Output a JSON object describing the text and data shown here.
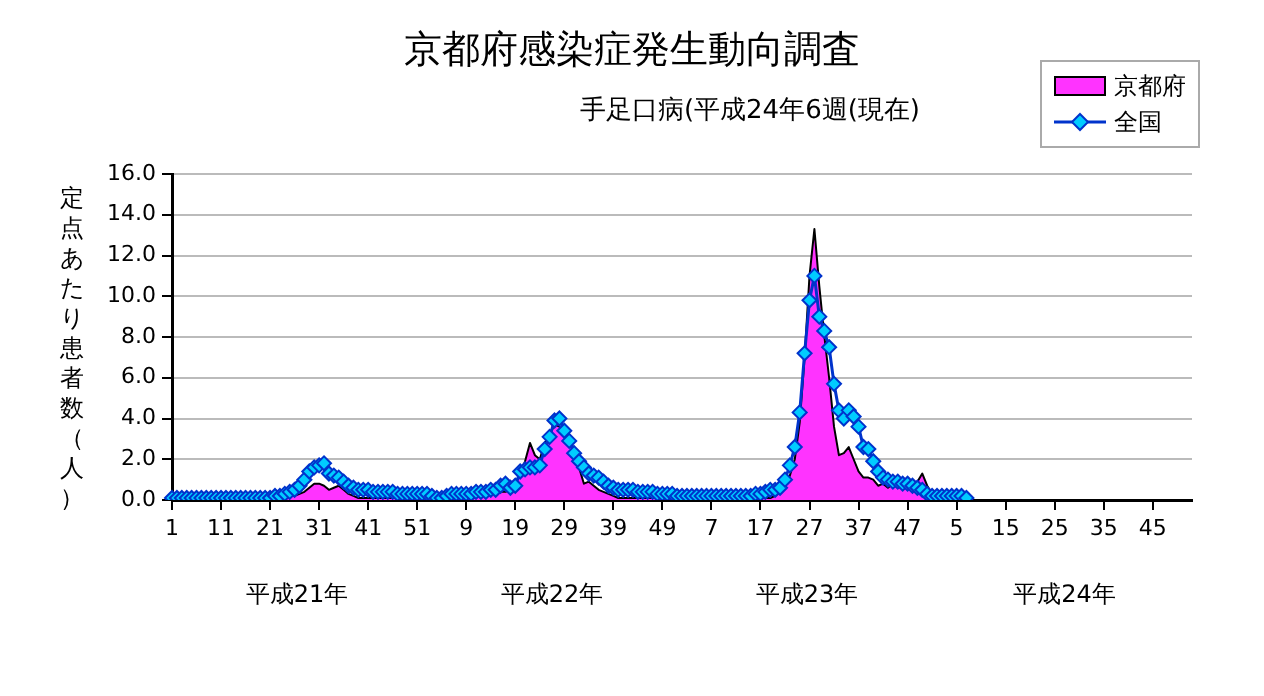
{
  "chart_data": {
    "type": "line",
    "title": "京都府感染症発生動向調査",
    "subtitle": "手足口病(平成24年6週(現在)",
    "ylabel": "定点あたり患者数（人）",
    "categories": [
      "1",
      null,
      null,
      null,
      null,
      null,
      null,
      null,
      null,
      null,
      "11",
      null,
      null,
      null,
      null,
      null,
      null,
      null,
      null,
      null,
      "21",
      null,
      null,
      null,
      null,
      null,
      null,
      null,
      null,
      null,
      "31",
      null,
      null,
      null,
      null,
      null,
      null,
      null,
      null,
      null,
      "41",
      null,
      null,
      null,
      null,
      null,
      null,
      null,
      null,
      null,
      "51",
      null,
      null,
      null,
      null,
      null,
      null,
      null,
      null,
      null,
      "9",
      null,
      null,
      null,
      null,
      null,
      null,
      null,
      null,
      null,
      "19",
      null,
      null,
      null,
      null,
      null,
      null,
      null,
      null,
      null,
      "29",
      null,
      null,
      null,
      null,
      null,
      null,
      null,
      null,
      null,
      "39",
      null,
      null,
      null,
      null,
      null,
      null,
      null,
      null,
      null,
      "49",
      null,
      null,
      null,
      null,
      null,
      null,
      null,
      null,
      null,
      "7",
      null,
      null,
      null,
      null,
      null,
      null,
      null,
      null,
      null,
      "17",
      null,
      null,
      null,
      null,
      null,
      null,
      null,
      null,
      null,
      "27",
      null,
      null,
      null,
      null,
      null,
      null,
      null,
      null,
      null,
      "37",
      null,
      null,
      null,
      null,
      null,
      null,
      null,
      null,
      null,
      "47",
      null,
      null,
      null,
      null,
      null,
      null,
      null,
      null,
      null,
      "5",
      null,
      null,
      null,
      null,
      null,
      null,
      null,
      null,
      null,
      "15",
      null,
      null,
      null,
      null,
      null,
      null,
      null,
      null,
      null,
      "25",
      null,
      null,
      null,
      null,
      null,
      null,
      null,
      null,
      null,
      "35",
      null,
      null,
      null,
      null,
      null,
      null,
      null,
      null,
      null,
      "45",
      null,
      null,
      null,
      null,
      null,
      null,
      null,
      null
    ],
    "series": [
      {
        "name": "京都府",
        "type": "area",
        "color": "#ff33ff",
        "values": [
          0,
          0,
          0,
          0,
          0,
          0,
          0,
          0,
          0,
          0,
          0,
          0,
          0,
          0,
          0,
          0,
          0,
          0,
          0,
          0,
          0,
          0,
          0.1,
          0.1,
          0.2,
          0.2,
          0.3,
          0.4,
          0.6,
          0.8,
          0.8,
          0.7,
          0.5,
          0.6,
          0.7,
          0.5,
          0.3,
          0.2,
          0.1,
          0.1,
          0.1,
          0.1,
          0.1,
          0.1,
          0.1,
          0.1,
          0.1,
          0.1,
          0.1,
          0.1,
          0.1,
          0.1,
          0.1,
          0.1,
          0.1,
          0.1,
          0.1,
          0.1,
          0.1,
          0.1,
          0.2,
          0.2,
          0.2,
          0.3,
          0.3,
          0.3,
          0.3,
          0.4,
          0.4,
          0.5,
          0.8,
          1.3,
          1.9,
          2.8,
          2.2,
          2.0,
          2.8,
          3.2,
          3.7,
          3.6,
          3.4,
          3.0,
          2.5,
          1.6,
          0.8,
          0.9,
          0.7,
          0.5,
          0.4,
          0.3,
          0.2,
          0.1,
          0.1,
          0.1,
          0.1,
          0.1,
          0.1,
          0.1,
          0.1,
          0.1,
          0.1,
          0.1,
          0.1,
          0.1,
          0.1,
          0.1,
          0.1,
          0.1,
          0.1,
          0.1,
          0.1,
          0.1,
          0.1,
          0.1,
          0.1,
          0.1,
          0.1,
          0.1,
          0.1,
          0.1,
          0.1,
          0.1,
          0.1,
          0.2,
          0.4,
          0.7,
          1.2,
          2.0,
          3.8,
          7.0,
          11.0,
          13.3,
          10.5,
          8.1,
          6.0,
          3.6,
          2.2,
          2.3,
          2.6,
          2.0,
          1.4,
          1.1,
          1.1,
          1.0,
          0.7,
          0.8,
          0.6,
          0.8,
          0.6,
          0.7,
          0.8,
          0.8,
          0.9,
          1.3,
          0.7,
          0.3,
          0.2,
          0.1,
          0.1,
          0.1,
          0.1,
          0,
          0,
          null,
          null,
          null,
          null,
          null,
          null,
          null,
          null,
          null,
          null,
          null,
          null,
          null,
          null,
          null,
          null,
          null,
          null,
          null,
          null,
          null,
          null,
          null,
          null,
          null,
          null,
          null,
          null,
          null,
          null,
          null,
          null,
          null,
          null,
          null,
          null,
          null,
          null,
          null,
          null,
          null,
          null,
          null,
          null,
          null,
          null
        ]
      },
      {
        "name": "全国",
        "type": "line",
        "color": "#0033cc",
        "marker": "diamond",
        "values": [
          0.1,
          0.1,
          0.1,
          0.1,
          0.1,
          0.1,
          0.1,
          0.1,
          0.1,
          0.1,
          0.1,
          0.1,
          0.1,
          0.1,
          0.1,
          0.1,
          0.1,
          0.1,
          0.1,
          0.1,
          0.1,
          0.2,
          0.2,
          0.3,
          0.4,
          0.5,
          0.7,
          1.0,
          1.4,
          1.6,
          1.7,
          1.8,
          1.3,
          1.2,
          1.1,
          0.9,
          0.7,
          0.6,
          0.5,
          0.5,
          0.5,
          0.4,
          0.4,
          0.4,
          0.4,
          0.4,
          0.3,
          0.3,
          0.3,
          0.3,
          0.3,
          0.3,
          0.3,
          0.2,
          0.1,
          0.1,
          0.2,
          0.3,
          0.3,
          0.3,
          0.3,
          0.3,
          0.4,
          0.4,
          0.4,
          0.5,
          0.5,
          0.7,
          0.8,
          0.6,
          0.7,
          1.4,
          1.5,
          1.6,
          1.6,
          1.7,
          2.5,
          3.1,
          3.9,
          4.0,
          3.4,
          2.9,
          2.3,
          1.9,
          1.6,
          1.3,
          1.2,
          1.1,
          0.9,
          0.7,
          0.6,
          0.5,
          0.5,
          0.5,
          0.5,
          0.4,
          0.4,
          0.4,
          0.4,
          0.3,
          0.3,
          0.3,
          0.3,
          0.2,
          0.2,
          0.2,
          0.2,
          0.2,
          0.2,
          0.2,
          0.2,
          0.2,
          0.2,
          0.2,
          0.2,
          0.2,
          0.2,
          0.2,
          0.2,
          0.3,
          0.3,
          0.4,
          0.5,
          0.5,
          0.6,
          1.0,
          1.7,
          2.6,
          4.3,
          7.2,
          9.8,
          11.0,
          9.0,
          8.3,
          7.5,
          5.7,
          4.4,
          4.0,
          4.4,
          4.1,
          3.6,
          2.6,
          2.5,
          1.9,
          1.4,
          1.1,
          1.0,
          0.9,
          0.9,
          0.8,
          0.8,
          0.7,
          0.6,
          0.5,
          0.3,
          0.2,
          0.2,
          0.2,
          0.2,
          0.2,
          0.2,
          0.2,
          0.1,
          null,
          null,
          null,
          null,
          null,
          null,
          null,
          null,
          null,
          null,
          null,
          null,
          null,
          null,
          null,
          null,
          null,
          null,
          null,
          null,
          null,
          null,
          null,
          null,
          null,
          null,
          null,
          null,
          null,
          null,
          null,
          null,
          null,
          null,
          null,
          null,
          null,
          null,
          null,
          null,
          null,
          null,
          null,
          null,
          null,
          null
        ]
      }
    ],
    "ylim": [
      0,
      16
    ],
    "yticks": [
      {
        "value": 0,
        "label": "0.0"
      },
      {
        "value": 2,
        "label": "2.0"
      },
      {
        "value": 4,
        "label": "4.0"
      },
      {
        "value": 6,
        "label": "6.0"
      },
      {
        "value": 8,
        "label": "8.0"
      },
      {
        "value": 10,
        "label": "10.0"
      },
      {
        "value": 12,
        "label": "12.0"
      },
      {
        "value": 14,
        "label": "14.0"
      },
      {
        "value": 16,
        "label": "16.0"
      }
    ],
    "grid": "y",
    "legend": "top right",
    "annotations": [
      "平成21年",
      "平成22年",
      "平成23年",
      "平成24年"
    ]
  }
}
